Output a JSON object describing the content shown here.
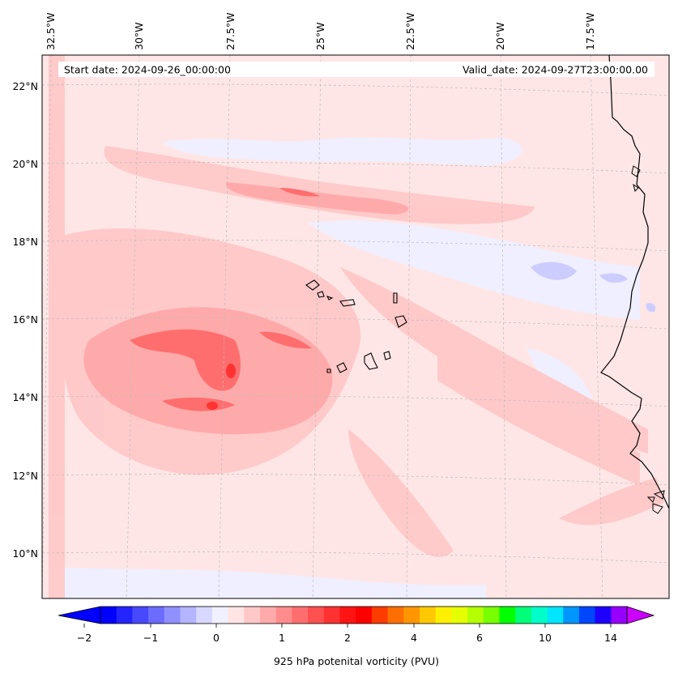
{
  "map": {
    "title_left": "Start date: 2024-09-26_00:00:00",
    "title_right": "Valid_date: 2024-09-27T23:00:00.00",
    "lon_labels": [
      "32.5°W",
      "30°W",
      "27.5°W",
      "25°W",
      "22.5°W",
      "20°W",
      "17.5°W"
    ],
    "lat_labels": [
      "22°N",
      "20°N",
      "18°N",
      "16°N",
      "14°N",
      "12°N",
      "10°N"
    ],
    "gridlines": true
  },
  "colorbar": {
    "label": "925 hPa potenital vorticity (PVU)",
    "ticks": [
      "−2",
      "−1",
      "0",
      "1",
      "2",
      "4",
      "6",
      "10",
      "14"
    ],
    "extend": "both",
    "colors": [
      "#0000ff",
      "#2424ff",
      "#4848ff",
      "#6c6cff",
      "#9090ff",
      "#b4b4ff",
      "#d8d8ff",
      "#f0f0ff",
      "#ffe4e4",
      "#ffc8c8",
      "#ffaaaa",
      "#ff8c8c",
      "#ff6e6e",
      "#ff5050",
      "#ff3232",
      "#ff1414",
      "#ff0000",
      "#ff3c00",
      "#ff6e00",
      "#ff9600",
      "#ffc800",
      "#fff000",
      "#e6ff00",
      "#b4ff00",
      "#78ff00",
      "#00ff00",
      "#00ff78",
      "#00ffc8",
      "#00e6ff",
      "#0096ff",
      "#0046ff",
      "#1e00ff",
      "#9600ff"
    ],
    "below_color": "#0000ff",
    "above_color": "#cc00ff"
  }
}
